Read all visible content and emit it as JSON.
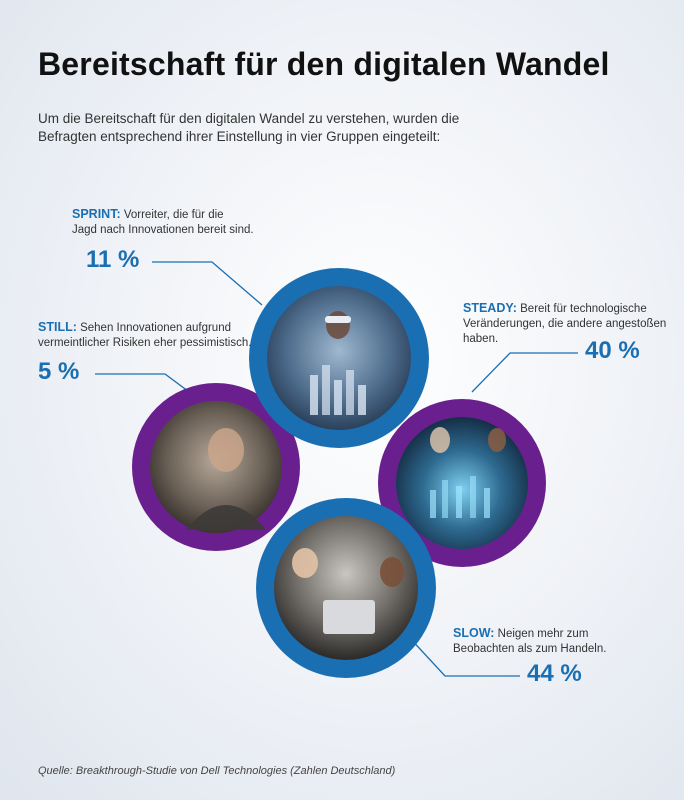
{
  "title": "Bereitschaft für den digitalen Wandel",
  "intro": "Um die Bereitschaft für den digitalen Wandel zu verstehen, wurden die Befragten entsprechend ihrer Einstellung in vier Gruppen eingeteilt:",
  "segments": {
    "sprint": {
      "name": "SPRINT:",
      "text": "Vorreiter, die für die",
      "text2": "Jagd nach Innovationen bereit sind.",
      "pct": "11 %"
    },
    "still": {
      "name": "STILL:",
      "text": "Sehen Innovationen aufgrund",
      "text2": "vermeintlicher Risiken eher pessimistisch.",
      "pct": "5 %"
    },
    "steady": {
      "name": "STEADY:",
      "text": "Bereit für technologische",
      "text2": "Veränderungen, die andere angestoßen",
      "text3": "haben.",
      "pct": "40 %"
    },
    "slow": {
      "name": "SLOW:",
      "text": "Neigen mehr zum",
      "text2": "Beobachten als zum Handeln.",
      "pct": "44 %"
    }
  },
  "source": "Quelle: Breakthrough-Studie von Dell Technologies (Zahlen Deutschland)",
  "colors": {
    "blue": "#1a6fb3",
    "purple": "#6a1f8e"
  }
}
